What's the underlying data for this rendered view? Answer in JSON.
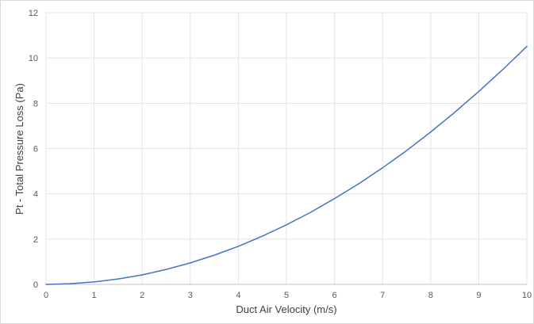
{
  "chart_data": {
    "type": "line",
    "title": "",
    "xlabel": "Duct Air Velocity (m/s)",
    "ylabel": "Pt - Total Pressure Loss (Pa)",
    "xlim": [
      0,
      10
    ],
    "ylim": [
      0,
      12
    ],
    "x_ticks": [
      "0",
      "1",
      "2",
      "3",
      "4",
      "5",
      "6",
      "7",
      "8",
      "9",
      "10"
    ],
    "y_ticks": [
      "0",
      "2",
      "4",
      "6",
      "8",
      "10",
      "12"
    ],
    "grid": true,
    "legend": "none",
    "series": [
      {
        "color": "#4472c4",
        "x": [
          0,
          0.5,
          1,
          1.5,
          2,
          2.5,
          3,
          3.5,
          4,
          4.5,
          5,
          5.5,
          6,
          6.5,
          7,
          7.5,
          8,
          8.5,
          9,
          9.5,
          10
        ],
        "y": [
          0,
          0.03,
          0.11,
          0.24,
          0.42,
          0.66,
          0.95,
          1.29,
          1.68,
          2.13,
          2.63,
          3.18,
          3.79,
          4.44,
          5.15,
          5.91,
          6.73,
          7.6,
          8.52,
          9.49,
          10.51
        ]
      }
    ]
  }
}
